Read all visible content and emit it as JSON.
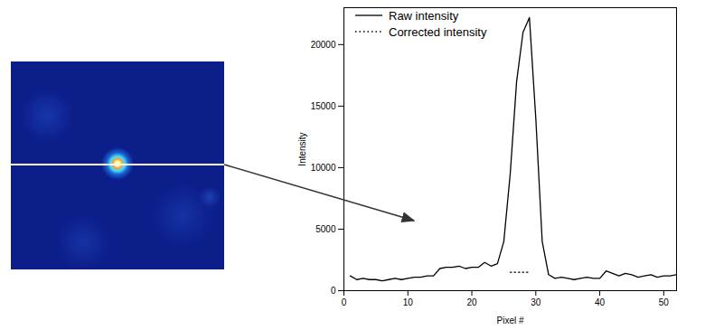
{
  "chart_data": {
    "type": "line",
    "xlabel": "Pixel #",
    "ylabel": "Intensity",
    "x": [
      1,
      2,
      3,
      4,
      5,
      6,
      7,
      8,
      9,
      10,
      11,
      12,
      13,
      14,
      15,
      16,
      17,
      18,
      19,
      20,
      21,
      22,
      23,
      24,
      25,
      26,
      27,
      28,
      29,
      30,
      31,
      32,
      33,
      34,
      35,
      36,
      37,
      38,
      39,
      40,
      41,
      42,
      43,
      44,
      45,
      46,
      47,
      48,
      49,
      50,
      51,
      52
    ],
    "series": [
      {
        "name": "Raw intensity",
        "color": "#000000",
        "line_style": "solid",
        "values": [
          1200,
          900,
          1000,
          900,
          900,
          800,
          900,
          1000,
          900,
          1000,
          1100,
          1100,
          1200,
          1200,
          1800,
          1900,
          1900,
          2000,
          1800,
          1900,
          1900,
          2300,
          2000,
          2200,
          4000,
          9500,
          17000,
          21000,
          22200,
          14000,
          4000,
          1300,
          1000,
          1100,
          1000,
          900,
          1000,
          1100,
          1000,
          1000,
          1600,
          1400,
          1200,
          1400,
          1300,
          1100,
          1200,
          1300,
          1100,
          1200,
          1200,
          1300
        ]
      },
      {
        "name": "Corrected intensity",
        "color": "#000000",
        "line_style": "dotted",
        "values": [
          null,
          null,
          null,
          null,
          null,
          null,
          null,
          null,
          null,
          null,
          null,
          null,
          null,
          null,
          null,
          null,
          null,
          null,
          null,
          null,
          null,
          null,
          null,
          null,
          null,
          1500,
          1500,
          1500,
          1500,
          null,
          null,
          null,
          null,
          null,
          null,
          null,
          null,
          null,
          null,
          null,
          null,
          null,
          null,
          null,
          null,
          null,
          null,
          null,
          null,
          null,
          null,
          null
        ]
      }
    ],
    "xlim": [
      0,
      52
    ],
    "xticks": [
      0,
      10,
      20,
      30,
      40,
      50
    ],
    "ylim": [
      0,
      23000
    ],
    "yticks": [
      0,
      5000,
      10000,
      15000,
      20000
    ],
    "legend": "top-left",
    "grid": false
  }
}
